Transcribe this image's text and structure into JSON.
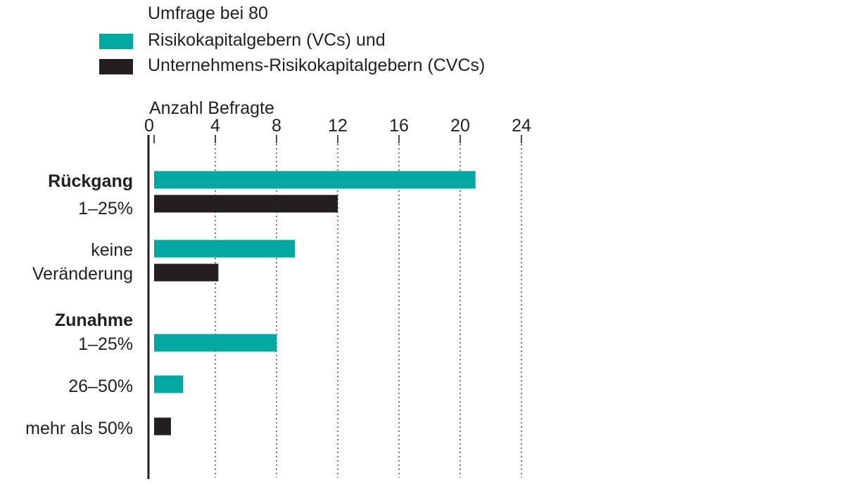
{
  "legend": {
    "heading": "Umfrage bei 80",
    "items": [
      {
        "label": "Risikokapitalgebern (VCs) und",
        "color": "#00a8a1"
      },
      {
        "label": "Unternehmens-Risikokapitalgebern (CVCs)",
        "color": "#231f20"
      }
    ]
  },
  "chart_data": {
    "type": "bar",
    "orientation": "horizontal",
    "xlabel": "Anzahl Befragte",
    "xlim": [
      0,
      24
    ],
    "xticks": [
      0,
      4,
      8,
      12,
      16,
      20,
      24
    ],
    "grid": "vertical dotted",
    "legend_position": "top-left",
    "groups": [
      {
        "label_lines": [
          {
            "text": "Rückgang",
            "bold": true
          },
          {
            "text": "1–25%",
            "bold": false
          }
        ],
        "vc": 21,
        "cvc": 12
      },
      {
        "label_lines": [
          {
            "text": "keine",
            "bold": false
          },
          {
            "text": "Veränderung",
            "bold": false
          }
        ],
        "vc": 9.2,
        "cvc": 4.2
      },
      {
        "label_lines": [
          {
            "text": "Zunahme",
            "bold": true
          },
          {
            "text": "1–25%",
            "bold": false
          }
        ],
        "vc": 8,
        "cvc": null
      },
      {
        "label_lines": [
          {
            "text": "26–50%",
            "bold": false
          }
        ],
        "vc": 1.9,
        "cvc": null
      },
      {
        "label_lines": [
          {
            "text": "mehr als 50%",
            "bold": false
          }
        ],
        "vc": null,
        "cvc": 1.1
      }
    ],
    "series": [
      {
        "key": "vc",
        "color": "#00a8a1"
      },
      {
        "key": "cvc",
        "color": "#231f20"
      }
    ]
  }
}
